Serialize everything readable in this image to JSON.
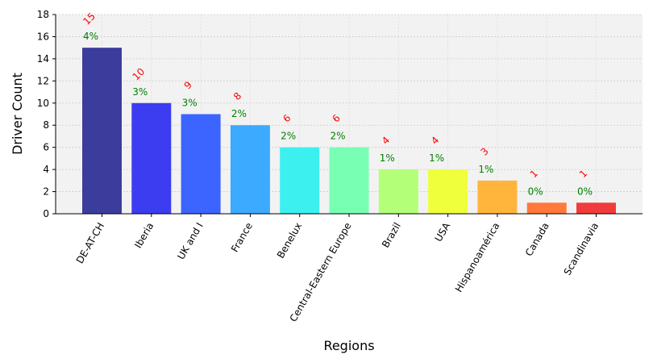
{
  "chart_data": {
    "type": "bar",
    "title": "",
    "xlabel": "Regions",
    "ylabel": "Driver Count",
    "ylim": [
      0,
      18
    ],
    "yticks": [
      0,
      2,
      4,
      6,
      8,
      10,
      12,
      14,
      16,
      18
    ],
    "grid": true,
    "categories": [
      "DE-AT-CH",
      "Iberia",
      "UK and I",
      "France",
      "Benelux",
      "Central-Eastern Europe",
      "Brazil",
      "USA",
      "Hispanoamérica",
      "Canada",
      "Scandinavia"
    ],
    "values": [
      15,
      10,
      9,
      8,
      6,
      6,
      4,
      4,
      3,
      1,
      1
    ],
    "percent_labels": [
      "4%",
      "3%",
      "3%",
      "2%",
      "2%",
      "2%",
      "1%",
      "1%",
      "1%",
      "0%",
      "0%"
    ],
    "bar_colors": [
      "#3c3c9c",
      "#3c3cf0",
      "#3c64ff",
      "#3caaff",
      "#3cf0f0",
      "#78ffb4",
      "#b4ff78",
      "#f0ff3c",
      "#ffb43c",
      "#ff783c",
      "#f03c3c"
    ],
    "plot_background": "#f2f2f2",
    "count_label_color": "#ff0000",
    "percent_label_color": "#008000"
  }
}
